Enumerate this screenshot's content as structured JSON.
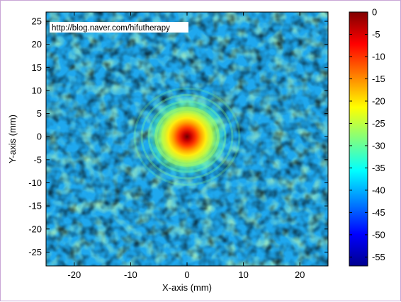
{
  "watermark": "http://blog.naver.com/hifutherapy",
  "chart_data": {
    "type": "heatmap",
    "xlabel": "X-axis (mm)",
    "ylabel": "Y-axis (mm)",
    "xlim": [
      -25,
      25
    ],
    "ylim": [
      -28,
      27
    ],
    "x_ticks": [
      -20,
      -10,
      0,
      10,
      20
    ],
    "y_ticks": [
      25,
      20,
      15,
      10,
      5,
      0,
      -5,
      -10,
      -15,
      -20,
      -25
    ],
    "colorbar": {
      "colormap": "jet",
      "range": [
        -57,
        0
      ],
      "ticks": [
        0,
        -5,
        -10,
        -15,
        -20,
        -25,
        -30,
        -35,
        -40,
        -45,
        -50,
        -55
      ]
    },
    "focal_peak": {
      "x": 0,
      "y": 0,
      "value": 0
    },
    "background_level_db": -38
  }
}
